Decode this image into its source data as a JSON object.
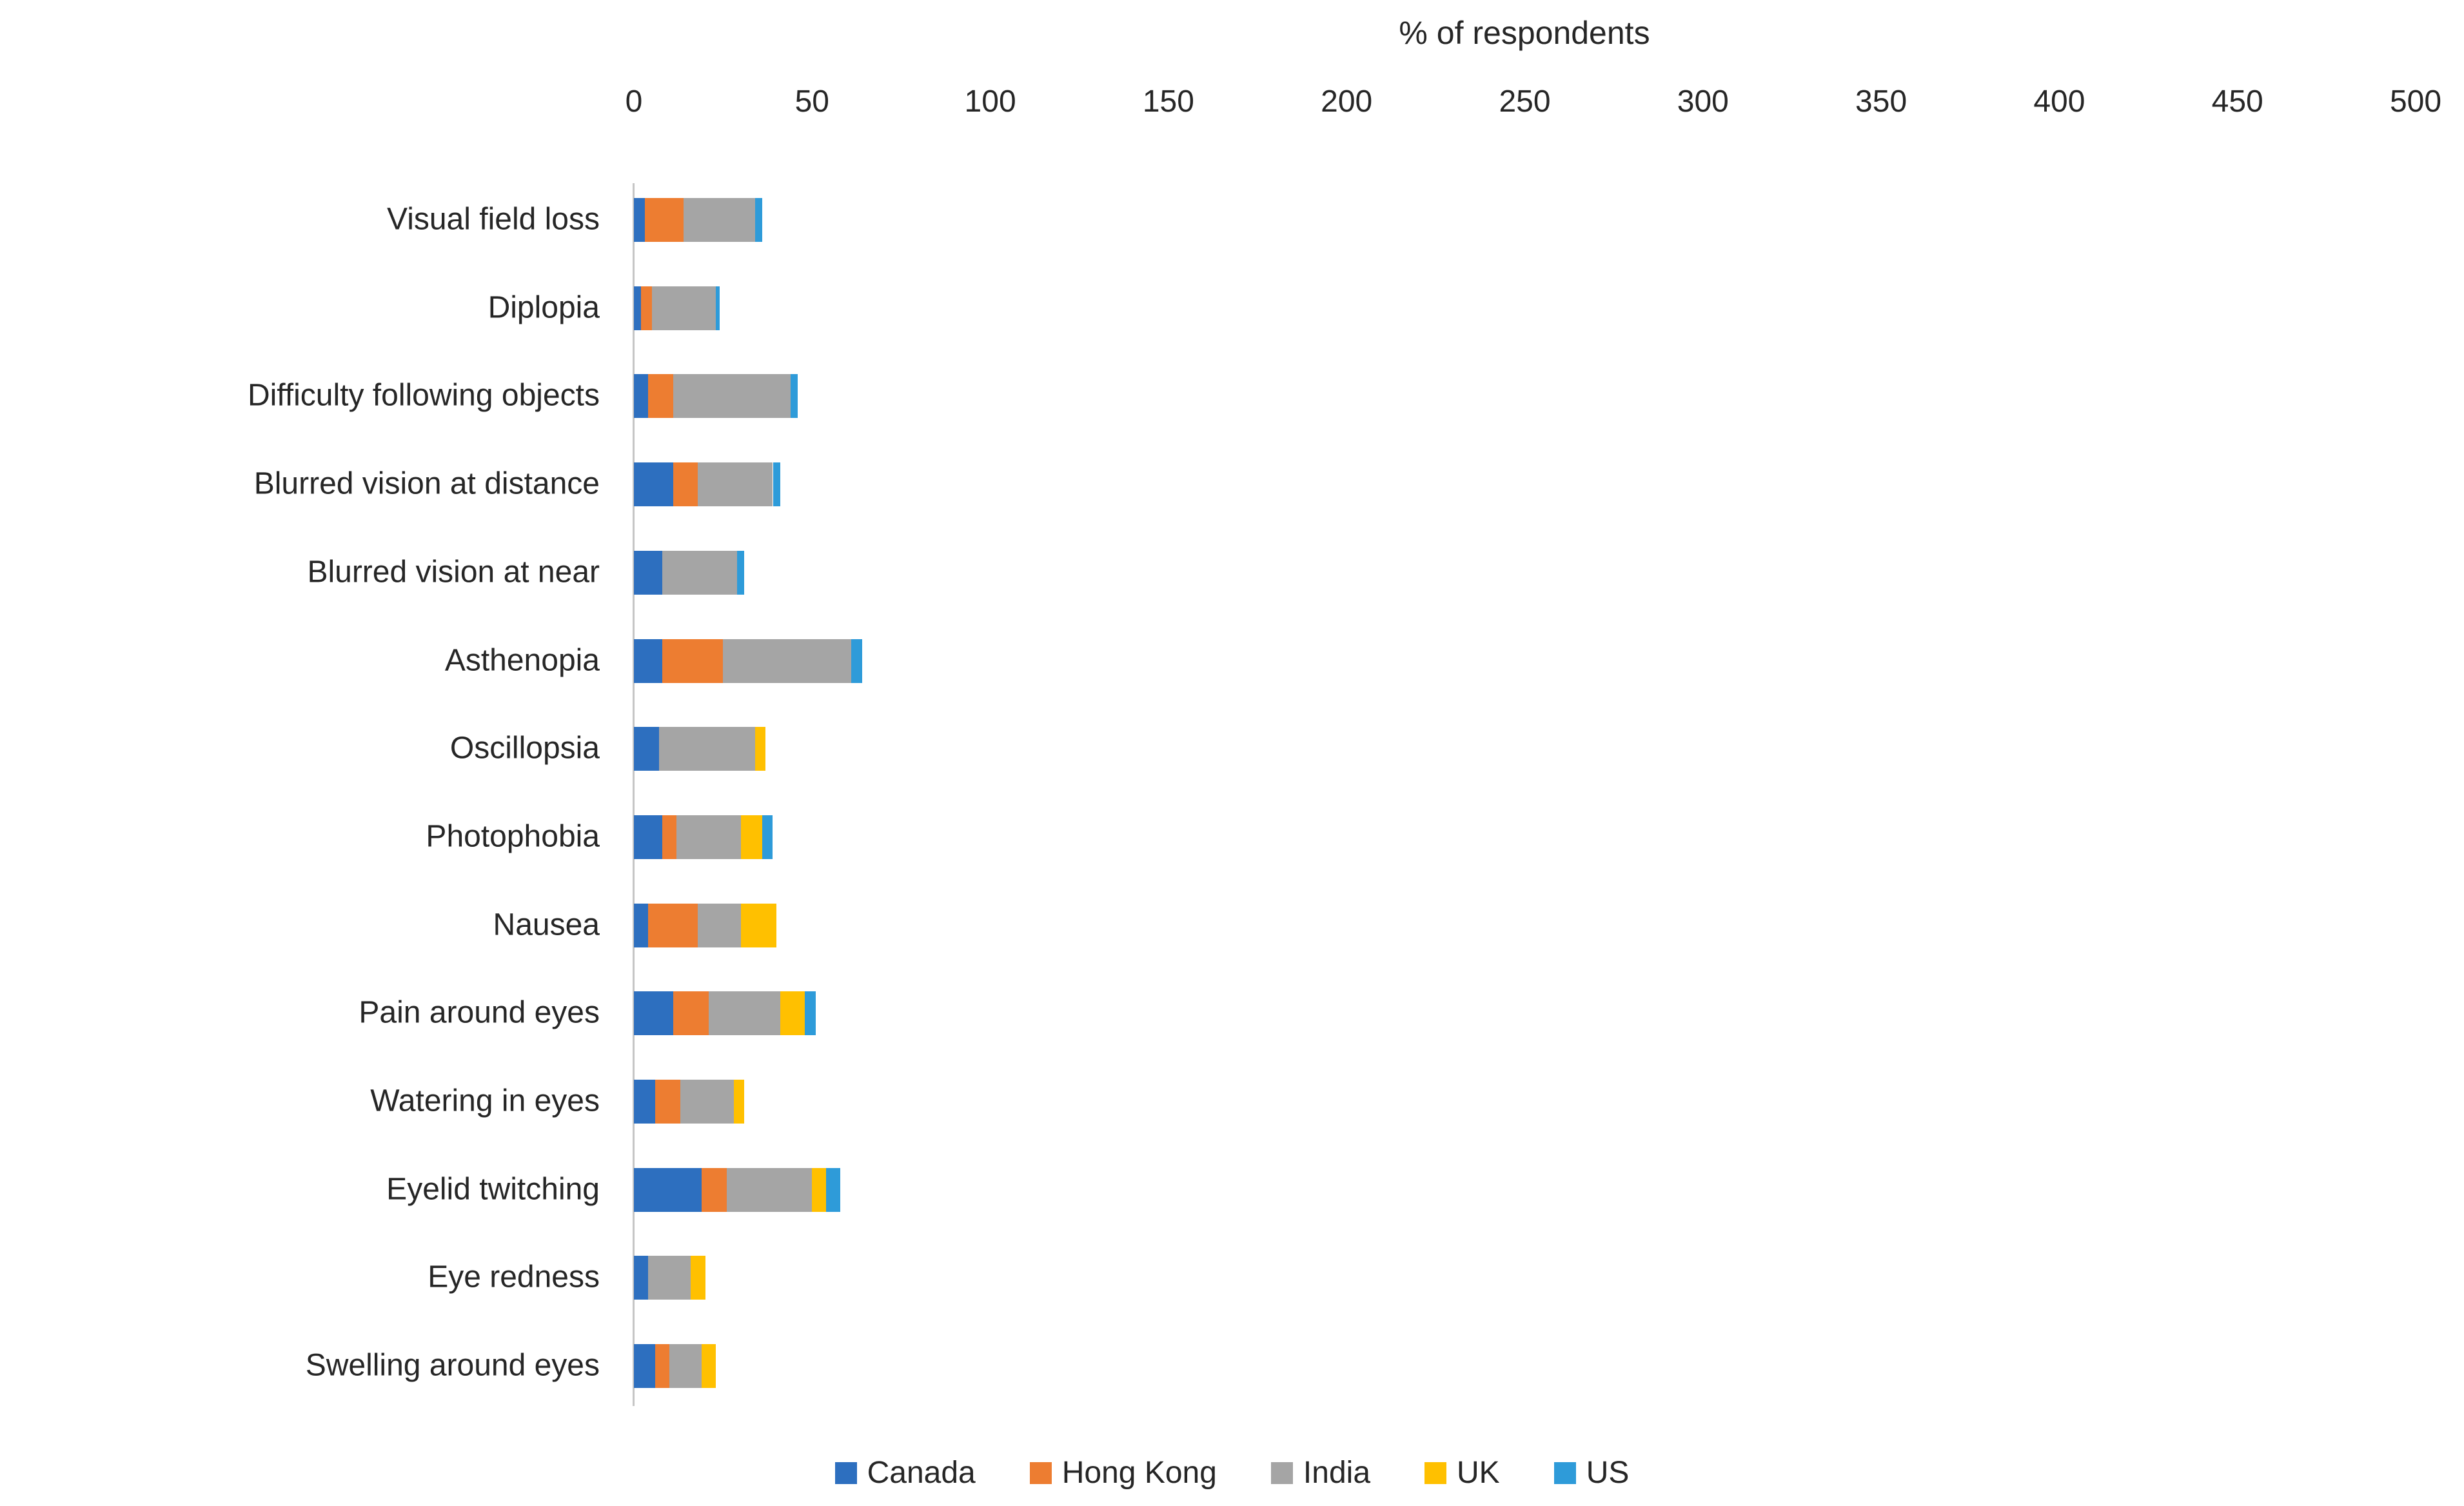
{
  "chart_data": {
    "type": "bar",
    "orientation": "horizontal",
    "stacked": true,
    "title": "% of respondents",
    "grid": false,
    "legend_position": "bottom",
    "x_axis": {
      "min": 0,
      "max": 500,
      "tick_step": 50,
      "ticks": [
        0,
        50,
        100,
        150,
        200,
        250,
        300,
        350,
        400,
        450,
        500
      ]
    },
    "categories": [
      "Visual field loss",
      "Diplopia",
      "Difficulty following objects",
      "Blurred vision at distance",
      "Blurred vision at near",
      "Asthenopia",
      "Oscillopsia",
      "Photophobia",
      "Nausea",
      "Pain around eyes",
      "Watering in eyes",
      "Eyelid twitching",
      "Eye redness",
      "Swelling around eyes"
    ],
    "series": [
      {
        "name": "Canada",
        "color": "#2D6FBF",
        "values": [
          3,
          2,
          4,
          11,
          8,
          8,
          7,
          8,
          4,
          11,
          6,
          19,
          4,
          6
        ]
      },
      {
        "name": "Hong Kong",
        "color": "#ED7D31",
        "values": [
          11,
          3,
          7,
          7,
          0,
          17,
          0,
          4,
          14,
          10,
          7,
          7,
          0,
          4
        ]
      },
      {
        "name": "India",
        "color": "#A5A5A5",
        "values": [
          20,
          18,
          33,
          21,
          21,
          36,
          27,
          18,
          12,
          20,
          15,
          24,
          12,
          9
        ]
      },
      {
        "name": "UK",
        "color": "#FFC000",
        "values": [
          0,
          0,
          0,
          0,
          0,
          0,
          3,
          6,
          10,
          7,
          3,
          4,
          4,
          4
        ]
      },
      {
        "name": "US",
        "color": "#2E9BD9",
        "values": [
          2,
          1,
          2,
          2,
          2,
          3,
          0,
          3,
          0,
          3,
          0,
          4,
          0,
          0
        ]
      }
    ],
    "axis_color": "#C6C6C6",
    "text_color": "#262626"
  }
}
